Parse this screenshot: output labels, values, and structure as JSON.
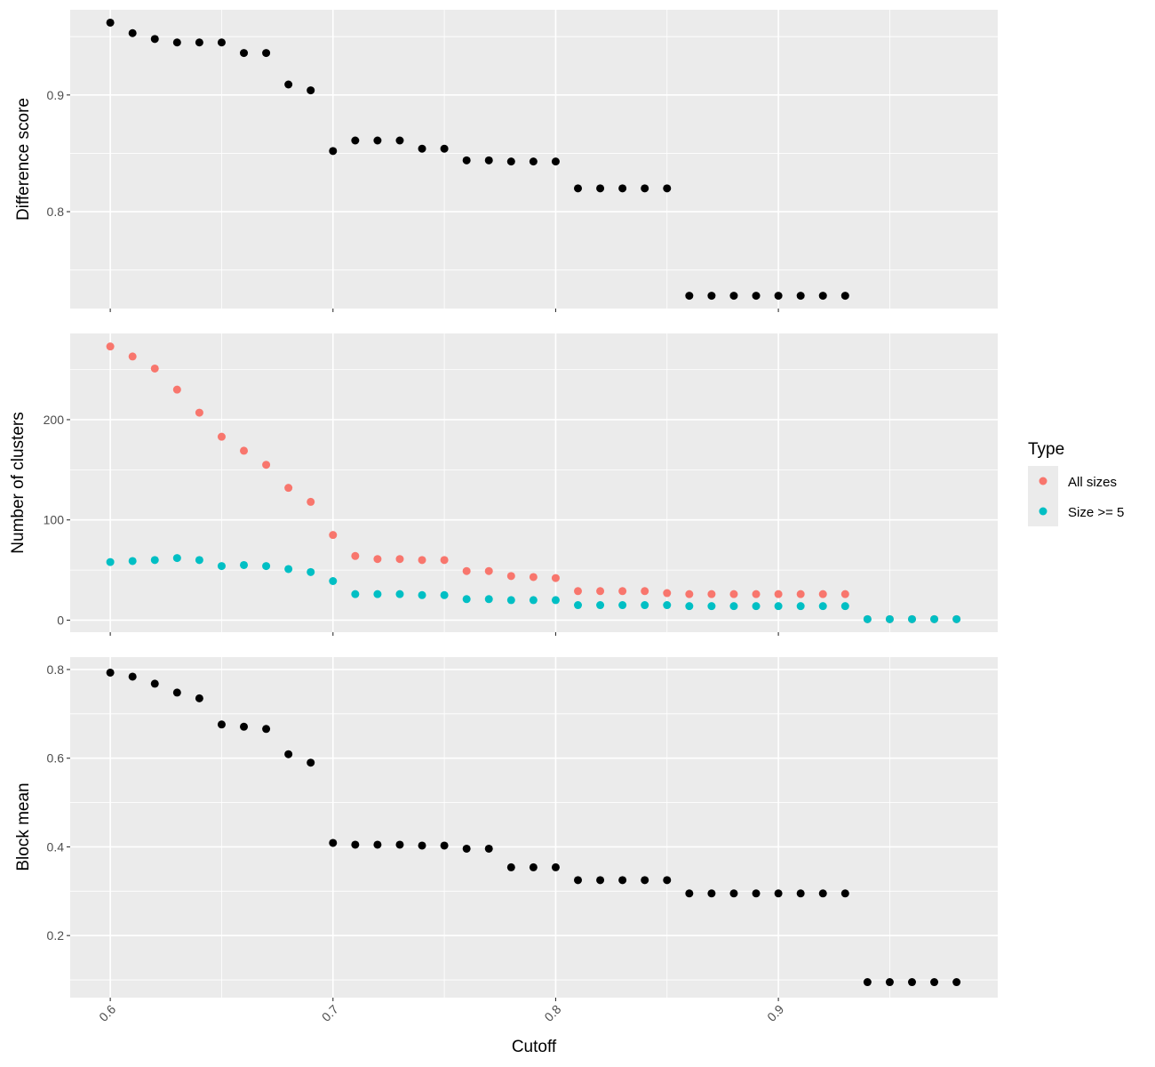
{
  "chart_data": {
    "type": "scatter",
    "xlabel": "Cutoff",
    "x_ticks": [
      0.6,
      0.7,
      0.8,
      0.9
    ],
    "x_tick_labels": [
      "0.6",
      "0.7",
      "0.8",
      "0.9"
    ],
    "xlim": [
      0.582,
      0.9985
    ],
    "grid": true,
    "legend": {
      "title": "Type",
      "position": "right",
      "entries": [
        {
          "label": "All sizes",
          "color": "#F8766D"
        },
        {
          "label": "Size >= 5",
          "color": "#00BFC4"
        }
      ]
    },
    "panels": [
      {
        "ylabel": "Difference score",
        "ylim": [
          0.717,
          0.973
        ],
        "y_ticks": [
          0.8,
          0.9
        ],
        "y_tick_labels": [
          "0.8",
          "0.9"
        ],
        "series": [
          {
            "color": "#000000",
            "x": [
              0.6,
              0.61,
              0.62,
              0.63,
              0.64,
              0.65,
              0.66,
              0.67,
              0.68,
              0.69,
              0.7,
              0.71,
              0.72,
              0.73,
              0.74,
              0.75,
              0.76,
              0.77,
              0.78,
              0.79,
              0.8,
              0.81,
              0.82,
              0.83,
              0.84,
              0.85,
              0.86,
              0.87,
              0.88,
              0.89,
              0.9,
              0.91,
              0.92,
              0.93
            ],
            "y": [
              0.962,
              0.953,
              0.948,
              0.945,
              0.945,
              0.945,
              0.936,
              0.936,
              0.909,
              0.904,
              0.852,
              0.861,
              0.861,
              0.861,
              0.854,
              0.854,
              0.844,
              0.844,
              0.843,
              0.843,
              0.843,
              0.82,
              0.82,
              0.82,
              0.82,
              0.82,
              0.728,
              0.728,
              0.728,
              0.728,
              0.728,
              0.728,
              0.728,
              0.728
            ]
          }
        ]
      },
      {
        "ylabel": "Number of clusters",
        "ylim": [
          -12,
          286
        ],
        "y_ticks": [
          0,
          100,
          200
        ],
        "y_tick_labels": [
          "0",
          "100",
          "200"
        ],
        "series": [
          {
            "name": "All sizes",
            "color": "#F8766D",
            "x": [
              0.6,
              0.61,
              0.62,
              0.63,
              0.64,
              0.65,
              0.66,
              0.67,
              0.68,
              0.69,
              0.7,
              0.71,
              0.72,
              0.73,
              0.74,
              0.75,
              0.76,
              0.77,
              0.78,
              0.79,
              0.8,
              0.81,
              0.82,
              0.83,
              0.84,
              0.85,
              0.86,
              0.87,
              0.88,
              0.89,
              0.9,
              0.91,
              0.92,
              0.93,
              0.94,
              0.95,
              0.96,
              0.97,
              0.98
            ],
            "y": [
              273,
              263,
              251,
              230,
              207,
              183,
              169,
              155,
              132,
              118,
              85,
              64,
              61,
              61,
              60,
              60,
              49,
              49,
              44,
              43,
              42,
              29,
              29,
              29,
              29,
              27,
              26,
              26,
              26,
              26,
              26,
              26,
              26,
              26,
              1,
              1,
              1,
              1,
              1
            ]
          },
          {
            "name": "Size >= 5",
            "color": "#00BFC4",
            "x": [
              0.6,
              0.61,
              0.62,
              0.63,
              0.64,
              0.65,
              0.66,
              0.67,
              0.68,
              0.69,
              0.7,
              0.71,
              0.72,
              0.73,
              0.74,
              0.75,
              0.76,
              0.77,
              0.78,
              0.79,
              0.8,
              0.81,
              0.82,
              0.83,
              0.84,
              0.85,
              0.86,
              0.87,
              0.88,
              0.89,
              0.9,
              0.91,
              0.92,
              0.93,
              0.94,
              0.95,
              0.96,
              0.97,
              0.98
            ],
            "y": [
              58,
              59,
              60,
              62,
              60,
              54,
              55,
              54,
              51,
              48,
              39,
              26,
              26,
              26,
              25,
              25,
              21,
              21,
              20,
              20,
              20,
              15,
              15,
              15,
              15,
              15,
              14,
              14,
              14,
              14,
              14,
              14,
              14,
              14,
              1,
              1,
              1,
              1,
              1
            ]
          }
        ]
      },
      {
        "ylabel": "Block mean",
        "ylim": [
          0.06,
          0.828
        ],
        "y_ticks": [
          0.2,
          0.4,
          0.6,
          0.8
        ],
        "y_tick_labels": [
          "0.2",
          "0.4",
          "0.6",
          "0.8"
        ],
        "series": [
          {
            "color": "#000000",
            "x": [
              0.6,
              0.61,
              0.62,
              0.63,
              0.64,
              0.65,
              0.66,
              0.67,
              0.68,
              0.69,
              0.7,
              0.71,
              0.72,
              0.73,
              0.74,
              0.75,
              0.76,
              0.77,
              0.78,
              0.79,
              0.8,
              0.81,
              0.82,
              0.83,
              0.84,
              0.85,
              0.86,
              0.87,
              0.88,
              0.89,
              0.9,
              0.91,
              0.92,
              0.93,
              0.94,
              0.95,
              0.96,
              0.97,
              0.98
            ],
            "y": [
              0.793,
              0.784,
              0.768,
              0.748,
              0.735,
              0.676,
              0.671,
              0.666,
              0.609,
              0.59,
              0.409,
              0.405,
              0.405,
              0.405,
              0.403,
              0.403,
              0.396,
              0.396,
              0.354,
              0.354,
              0.354,
              0.325,
              0.325,
              0.325,
              0.325,
              0.325,
              0.295,
              0.295,
              0.295,
              0.295,
              0.295,
              0.295,
              0.295,
              0.295,
              0.095,
              0.095,
              0.095,
              0.095,
              0.095
            ]
          }
        ]
      }
    ]
  }
}
